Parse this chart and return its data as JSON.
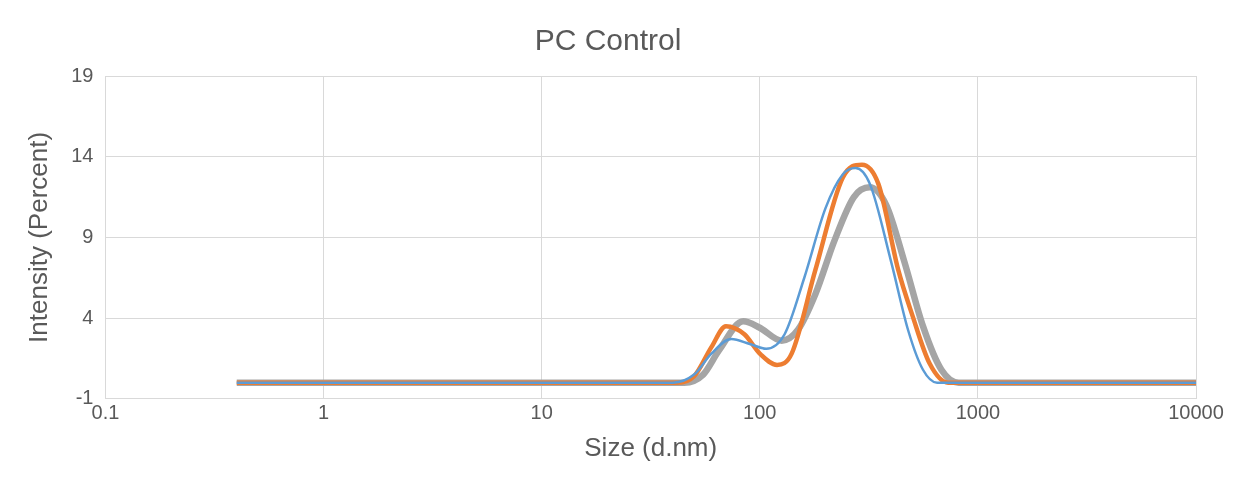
{
  "chart_data": {
    "type": "line",
    "title": "PC Control",
    "xlabel": "Size (d.nm)",
    "ylabel": "Intensity (Percent)",
    "log": "x",
    "xlim": [
      0.1,
      10000
    ],
    "xticks": [
      0.1,
      1,
      10,
      100,
      1000,
      10000
    ],
    "ylim": [
      -1,
      19
    ],
    "yticks": [
      -1,
      4,
      9,
      14,
      19
    ],
    "grid": true,
    "legend": false,
    "marker": "none",
    "line_style": "solid",
    "series": [
      {
        "color": "#5b9bd5",
        "x": [
          0.4,
          40,
          50,
          60,
          74,
          90,
          107,
          130,
          160,
          200,
          240,
          275,
          320,
          400,
          480,
          560,
          650,
          10000
        ],
        "values": [
          0,
          0,
          0.5,
          1.8,
          2.7,
          2.4,
          2.1,
          3.0,
          6.5,
          10.8,
          12.9,
          13.3,
          12.3,
          7.5,
          3.2,
          0.8,
          0,
          0
        ]
      },
      {
        "color": "#ed7d31",
        "x": [
          0.4,
          42,
          50,
          60,
          70,
          85,
          100,
          120,
          140,
          180,
          240,
          294,
          350,
          431,
          500,
          600,
          730,
          10000
        ],
        "values": [
          0,
          0,
          0.4,
          2.2,
          3.5,
          3.0,
          1.8,
          1.1,
          1.8,
          7.0,
          12.7,
          13.5,
          12.3,
          7.0,
          4.2,
          1.2,
          0,
          0
        ]
      },
      {
        "color": "#a5a5a5",
        "x": [
          0.4,
          45,
          55,
          65,
          84,
          100,
          126,
          150,
          180,
          220,
          270,
          319,
          380,
          460,
          560,
          680,
          817,
          10000
        ],
        "values": [
          0,
          0,
          0.5,
          2.0,
          3.8,
          3.4,
          2.6,
          3.3,
          5.5,
          8.8,
          11.5,
          12.1,
          11.0,
          7.5,
          3.5,
          0.8,
          0,
          0
        ]
      }
    ]
  }
}
